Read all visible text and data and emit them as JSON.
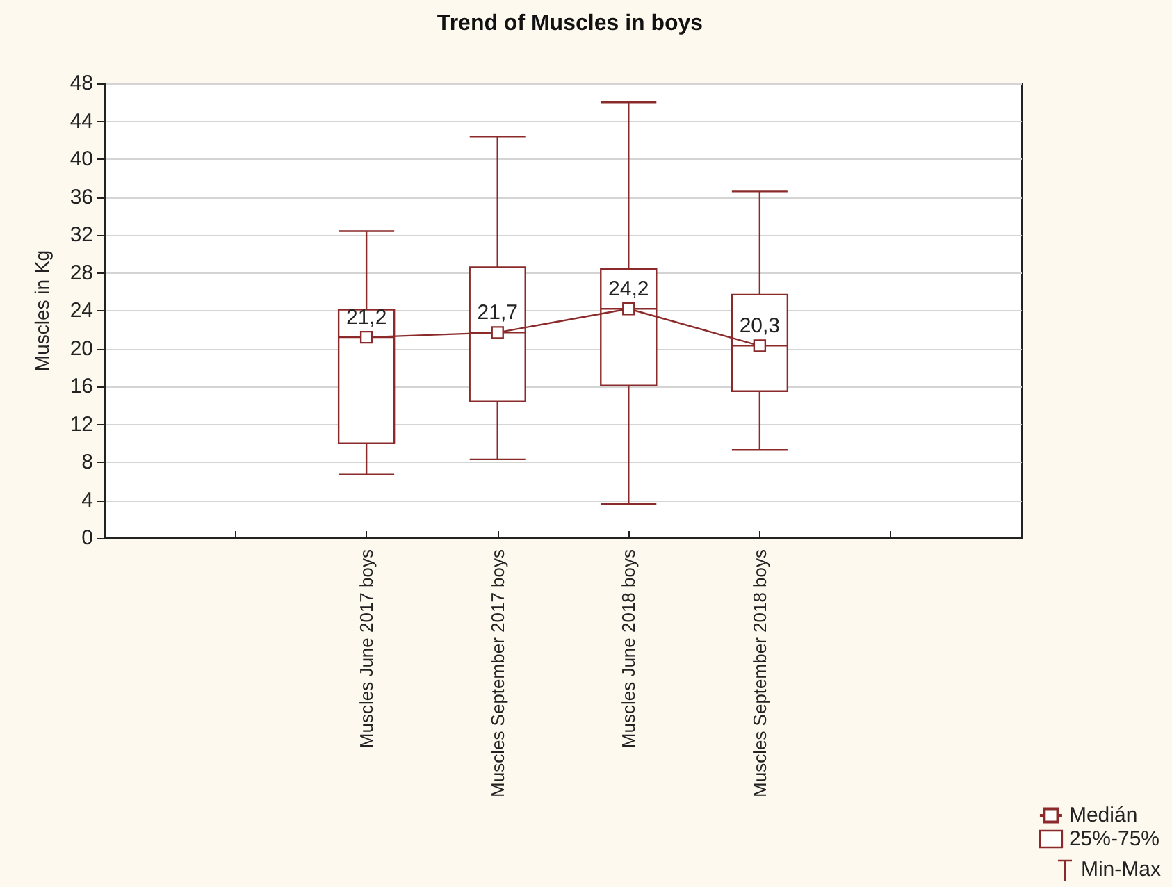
{
  "chart_data": {
    "type": "box",
    "title": "Trend of Muscles in boys",
    "ylabel": "Muscles in Kg",
    "categories": [
      null,
      null,
      "Muscles June 2017 boys",
      "Muscles September 2017 boys",
      "Muscles June 2018 boys",
      "Muscles September 2018 boys",
      null,
      null
    ],
    "series": [
      {
        "name": "25%-75%",
        "color": "#8b2a2a",
        "boxes": [
          null,
          null,
          {
            "low": 6.7,
            "q1": 10.0,
            "median": 21.2,
            "q3": 24.1,
            "high": 32.4
          },
          {
            "low": 8.3,
            "q1": 14.4,
            "median": 21.7,
            "q3": 28.6,
            "high": 42.4
          },
          {
            "low": 3.6,
            "q1": 16.1,
            "median": 24.2,
            "q3": 28.4,
            "high": 46.0
          },
          {
            "low": 9.3,
            "q1": 15.5,
            "median": 20.3,
            "q3": 25.7,
            "high": 36.6
          },
          null,
          null
        ]
      },
      {
        "type": "line",
        "name": "Medián",
        "color": "#8b2a2a",
        "marker": "square",
        "line_style": "solid",
        "values": [
          null,
          null,
          21.2,
          21.7,
          24.2,
          20.3,
          null,
          null
        ],
        "value_labels": [
          null,
          null,
          "21,2",
          "21,7",
          "24,2",
          "20,3",
          null,
          null
        ]
      }
    ],
    "annotations": [
      "Min-Max"
    ],
    "ylim": [
      0,
      48
    ],
    "yticks": [
      0,
      4,
      8,
      12,
      16,
      20,
      24,
      28,
      32,
      36,
      40,
      44,
      48
    ],
    "grid": "y",
    "legend": "bottom right"
  }
}
